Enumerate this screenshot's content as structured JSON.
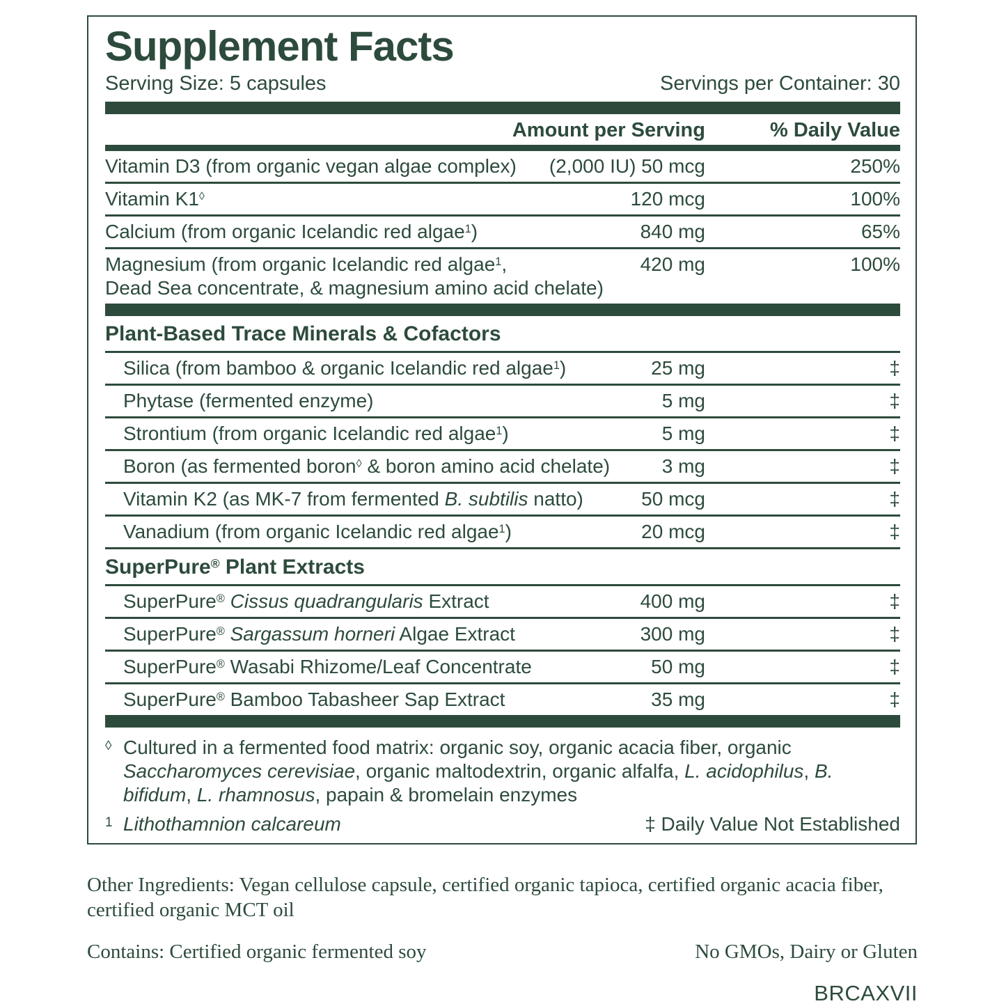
{
  "colors": {
    "green": "#2d4b3c"
  },
  "panel": {
    "title": "Supplement Facts",
    "serving_size": "Serving Size: 5 capsules",
    "servings_per_container": "Servings per Container: 30",
    "amount_header": "Amount per Serving",
    "dv_header": "% Daily Value"
  },
  "main_rows": [
    {
      "name": [
        {
          "t": "Vitamin D3 (from organic vegan algae complex)"
        }
      ],
      "amount": "(2,000 IU) 50 mcg",
      "dv": "250%"
    },
    {
      "name": [
        {
          "t": "Vitamin K1"
        },
        {
          "t": "◊",
          "sup": true
        }
      ],
      "amount": "120 mcg",
      "dv": "100%"
    },
    {
      "name": [
        {
          "t": "Calcium (from organic Icelandic red algae"
        },
        {
          "t": "1",
          "sup": true
        },
        {
          "t": ")"
        }
      ],
      "amount": "840 mg",
      "dv": "65%"
    },
    {
      "name": [
        {
          "t": "Magnesium (from organic Icelandic red algae"
        },
        {
          "t": "1",
          "sup": true
        },
        {
          "t": ","
        },
        {
          "br": true
        },
        {
          "t": "Dead Sea concentrate, & magnesium amino acid chelate)"
        }
      ],
      "amount": "420 mg",
      "dv": "100%"
    }
  ],
  "sections": [
    {
      "header": [
        {
          "t": "Plant-Based Trace Minerals & Cofactors"
        }
      ],
      "rows": [
        {
          "name": [
            {
              "t": "Silica (from bamboo & organic Icelandic red algae"
            },
            {
              "t": "1",
              "sup": true
            },
            {
              "t": ")"
            }
          ],
          "amount": "25 mg",
          "dv": "‡"
        },
        {
          "name": [
            {
              "t": "Phytase (fermented enzyme)"
            }
          ],
          "amount": "5 mg",
          "dv": "‡"
        },
        {
          "name": [
            {
              "t": "Strontium (from organic Icelandic red algae"
            },
            {
              "t": "1",
              "sup": true
            },
            {
              "t": ")"
            }
          ],
          "amount": "5 mg",
          "dv": "‡"
        },
        {
          "name": [
            {
              "t": "Boron (as fermented boron"
            },
            {
              "t": "◊",
              "sup": true
            },
            {
              "t": " & boron amino acid chelate)"
            }
          ],
          "amount": "3 mg",
          "dv": "‡"
        },
        {
          "name": [
            {
              "t": "Vitamin K2 (as MK-7 from fermented "
            },
            {
              "t": "B. subtilis",
              "i": true
            },
            {
              "t": " natto)"
            }
          ],
          "amount": "50 mcg",
          "dv": "‡"
        },
        {
          "name": [
            {
              "t": "Vanadium (from organic Icelandic red algae"
            },
            {
              "t": "1",
              "sup": true
            },
            {
              "t": ")"
            }
          ],
          "amount": "20 mcg",
          "dv": "‡"
        }
      ]
    },
    {
      "header": [
        {
          "t": "SuperPure"
        },
        {
          "t": "®",
          "sup": true
        },
        {
          "t": " Plant Extracts"
        }
      ],
      "rows": [
        {
          "name": [
            {
              "t": "SuperPure"
            },
            {
              "t": "®",
              "sup": true
            },
            {
              "t": " "
            },
            {
              "t": "Cissus quadrangularis",
              "i": true
            },
            {
              "t": " Extract"
            }
          ],
          "amount": "400 mg",
          "dv": "‡"
        },
        {
          "name": [
            {
              "t": "SuperPure"
            },
            {
              "t": "®",
              "sup": true
            },
            {
              "t": " "
            },
            {
              "t": "Sargassum horneri",
              "i": true
            },
            {
              "t": " Algae Extract"
            }
          ],
          "amount": "300 mg",
          "dv": "‡"
        },
        {
          "name": [
            {
              "t": "SuperPure"
            },
            {
              "t": "®",
              "sup": true
            },
            {
              "t": " Wasabi Rhizome/Leaf Concentrate"
            }
          ],
          "amount": "50 mg",
          "dv": "‡"
        },
        {
          "name": [
            {
              "t": "SuperPure"
            },
            {
              "t": "®",
              "sup": true
            },
            {
              "t": " Bamboo Tabasheer Sap Extract"
            }
          ],
          "amount": "35 mg",
          "dv": "‡"
        }
      ]
    }
  ],
  "footnotes": {
    "diamond": {
      "symbol": "◊",
      "segments": [
        {
          "t": "Cultured in a fermented food matrix: organic soy, organic acacia fiber, organic "
        },
        {
          "t": "Saccharomyces cerevisiae",
          "i": true
        },
        {
          "t": ", organic maltodextrin, organic alfalfa, "
        },
        {
          "t": "L. acidophilus",
          "i": true
        },
        {
          "t": ", "
        },
        {
          "t": "B. bifidum",
          "i": true
        },
        {
          "t": ", "
        },
        {
          "t": "L. rhamnosus",
          "i": true
        },
        {
          "t": ", papain & bromelain enzymes"
        }
      ]
    },
    "source": {
      "symbol": "1",
      "segments": [
        {
          "t": "Lithothamnion calcareum",
          "i": true
        }
      ]
    },
    "dv_note": "‡ Daily Value Not Established"
  },
  "below_panel": {
    "other_ingredients": "Other Ingredients: Vegan cellulose capsule, certified organic tapioca, certified organic acacia fiber, certified organic MCT oil",
    "contains": "Contains: Certified organic fermented soy",
    "allergen_note": "No GMOs, Dairy or Gluten",
    "product_code": "BRCAXVII"
  }
}
